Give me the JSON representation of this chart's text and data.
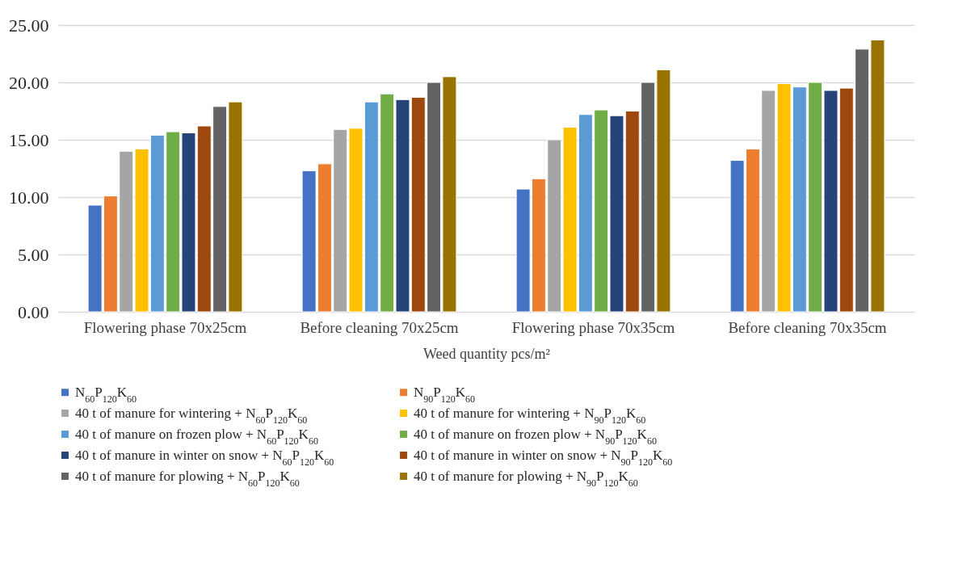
{
  "chart_data": {
    "type": "bar",
    "xlabel": "Weed quantity pcs/m²",
    "categories": [
      "Flowering phase 70x25cm",
      "Before cleaning 70x25cm",
      "Flowering  phase 70x35cm",
      "Before cleaning 70x35cm"
    ],
    "ylim": [
      0,
      25
    ],
    "yticks": [
      {
        "value": 0,
        "label": "0.00"
      },
      {
        "value": 5,
        "label": "5.00"
      },
      {
        "value": 10,
        "label": "10.00"
      },
      {
        "value": 15,
        "label": "15.00"
      },
      {
        "value": 20,
        "label": "20.00"
      },
      {
        "value": 25,
        "label": "25.00"
      }
    ],
    "grid": "y",
    "legend": "bottom",
    "series": [
      {
        "name": "N$_{60}$P$_{120}$K$_{60}$",
        "color": "#4472c4",
        "values": [
          9.3,
          12.3,
          10.7,
          13.2
        ]
      },
      {
        "name": "N$_{90}$P$_{120}$K$_{60}$",
        "color": "#ed7d31",
        "values": [
          10.1,
          12.9,
          11.6,
          14.2
        ]
      },
      {
        "name": "40 t of manure for wintering + N$_{60}$P$_{120}$K$_{60}$",
        "color": "#a5a5a5",
        "values": [
          14.0,
          15.9,
          15.0,
          19.3
        ]
      },
      {
        "name": "40 t of manure for wintering + N$_{90}$P$_{120}$K$_{60}$",
        "color": "#ffc000",
        "values": [
          14.2,
          16.0,
          16.1,
          19.9
        ]
      },
      {
        "name": "40 t of manure on frozen plow + N$_{60}$P$_{120}$K$_{60}$",
        "color": "#5b9bd5",
        "values": [
          15.4,
          18.3,
          17.2,
          19.6
        ]
      },
      {
        "name": "40 t of manure on frozen plow + N$_{90}$P$_{120}$K$_{60}$",
        "color": "#70ad47",
        "values": [
          15.7,
          19.0,
          17.6,
          20.0
        ]
      },
      {
        "name": "40 t of manure in winter on snow + N$_{60}$P$_{120}$K$_{60}$",
        "color": "#264478",
        "values": [
          15.6,
          18.5,
          17.1,
          19.3
        ]
      },
      {
        "name": "40 t of manure in winter on snow + N$_{90}$P$_{120}$K$_{60}$",
        "color": "#9e480e",
        "values": [
          16.2,
          18.7,
          17.5,
          19.5
        ]
      },
      {
        "name": "40 t of manure for plowing + N$_{60}$P$_{120}$K$_{60}$",
        "color": "#636363",
        "values": [
          17.9,
          20.0,
          20.0,
          22.9
        ]
      },
      {
        "name": "40 t of manure for plowing + N$_{90}$P$_{120}$K$_{60}$",
        "color": "#997300",
        "values": [
          18.3,
          20.5,
          21.1,
          23.7
        ]
      }
    ]
  }
}
